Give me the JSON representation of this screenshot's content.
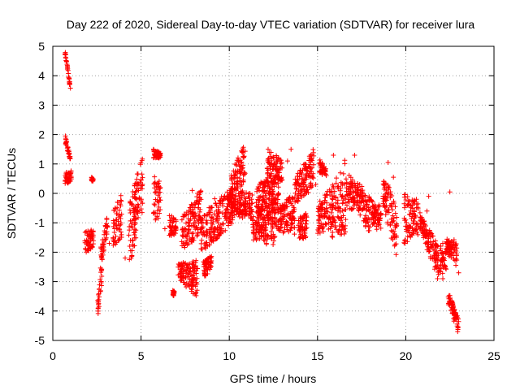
{
  "chart_data": {
    "type": "scatter",
    "title": "Day 222 of 2020, Sidereal Day-to-day VTEC variation (SDTVAR) for receiver lura",
    "xlabel": "GPS time / hours",
    "ylabel": "SDTVAR / TECUs",
    "xlim": [
      0,
      25
    ],
    "ylim": [
      -5,
      5
    ],
    "xticks": [
      0,
      5,
      10,
      15,
      20,
      25
    ],
    "yticks": [
      -5,
      -4,
      -3,
      -2,
      -1,
      0,
      1,
      2,
      3,
      4,
      5
    ],
    "grid": true,
    "marker": "+",
    "color": "#ff0000",
    "segments": [
      {
        "x": [
          0.7,
          1.0
        ],
        "y_top": [
          4.9,
          3.6
        ],
        "y_bot": [
          4.7,
          3.5
        ]
      },
      {
        "x": [
          0.7,
          1.0
        ],
        "y_top": [
          2.0,
          1.2
        ],
        "y_bot": [
          1.7,
          1.1
        ]
      },
      {
        "x": [
          0.7,
          1.05
        ],
        "y_top": [
          0.7,
          0.8
        ],
        "y_bot": [
          0.3,
          0.4
        ]
      },
      {
        "x": [
          1.8,
          2.3
        ],
        "y_top": [
          -1.3,
          -1.2
        ],
        "y_bot": [
          -2.1,
          -1.8
        ]
      },
      {
        "x": [
          2.2,
          2.3
        ],
        "y_top": [
          0.6,
          0.5
        ],
        "y_bot": [
          0.4,
          0.4
        ]
      },
      {
        "x": [
          2.55,
          2.8
        ],
        "y_top": [
          -3.6,
          -2.2
        ],
        "y_bot": [
          -4.2,
          -3.0
        ]
      },
      {
        "x": [
          2.7,
          3.1
        ],
        "y_top": [
          -1.8,
          -0.7
        ],
        "y_bot": [
          -2.6,
          -1.3
        ]
      },
      {
        "x": [
          3.4,
          3.9
        ],
        "y_top": [
          -0.6,
          0.0
        ],
        "y_bot": [
          -1.9,
          -1.5
        ]
      },
      {
        "x": [
          4.3,
          4.8
        ],
        "y_top": [
          -0.4,
          0.7
        ],
        "y_bot": [
          -2.5,
          -1.6
        ]
      },
      {
        "x": [
          4.6,
          5.1
        ],
        "y_top": [
          0.2,
          1.4
        ],
        "y_bot": [
          -1.2,
          -0.7
        ]
      },
      {
        "x": [
          5.7,
          6.1
        ],
        "y_top": [
          1.5,
          1.4
        ],
        "y_bot": [
          1.2,
          1.2
        ]
      },
      {
        "x": [
          5.7,
          6.1
        ],
        "y_top": [
          0.6,
          0.4
        ],
        "y_bot": [
          -1.0,
          -0.8
        ]
      },
      {
        "x": [
          6.6,
          7.0
        ],
        "y_top": [
          -0.6,
          -0.9
        ],
        "y_bot": [
          -1.5,
          -1.4
        ]
      },
      {
        "x": [
          6.8,
          6.9
        ],
        "y_top": [
          -3.3,
          -3.3
        ],
        "y_bot": [
          -3.5,
          -3.5
        ]
      },
      {
        "x": [
          7.3,
          8.4
        ],
        "y_top": [
          -0.8,
          0.1
        ],
        "y_bot": [
          -2.0,
          -1.4
        ]
      },
      {
        "x": [
          7.1,
          8.2
        ],
        "y_top": [
          -2.4,
          -2.2
        ],
        "y_bot": [
          -2.9,
          -3.6
        ]
      },
      {
        "x": [
          8.4,
          9.4
        ],
        "y_top": [
          -0.8,
          0.0
        ],
        "y_bot": [
          -2.0,
          -1.5
        ]
      },
      {
        "x": [
          8.5,
          9.0
        ],
        "y_top": [
          -2.3,
          -2.1
        ],
        "y_bot": [
          -2.9,
          -2.6
        ]
      },
      {
        "x": [
          9.4,
          10.2
        ],
        "y_top": [
          -0.2,
          0.3
        ],
        "y_bot": [
          -1.5,
          -1.0
        ]
      },
      {
        "x": [
          10.1,
          10.9
        ],
        "y_top": [
          0.8,
          1.7
        ],
        "y_bot": [
          -0.1,
          0.4
        ]
      },
      {
        "x": [
          10.0,
          11.3
        ],
        "y_top": [
          0.2,
          0.0
        ],
        "y_bot": [
          -0.8,
          -0.9
        ]
      },
      {
        "x": [
          11.3,
          12.6
        ],
        "y_top": [
          -0.6,
          -0.3
        ],
        "y_bot": [
          -1.6,
          -1.8
        ]
      },
      {
        "x": [
          11.5,
          12.8
        ],
        "y_top": [
          0.3,
          0.7
        ],
        "y_bot": [
          -0.8,
          -0.6
        ]
      },
      {
        "x": [
          12.1,
          13.0
        ],
        "y_top": [
          1.5,
          1.2
        ],
        "y_bot": [
          0.3,
          0.4
        ]
      },
      {
        "x": [
          12.6,
          13.7
        ],
        "y_top": [
          -0.5,
          0.0
        ],
        "y_bot": [
          -1.3,
          -1.4
        ]
      },
      {
        "x": [
          13.7,
          14.8
        ],
        "y_top": [
          0.5,
          1.6
        ],
        "y_bot": [
          -0.4,
          0.2
        ]
      },
      {
        "x": [
          13.9,
          14.4
        ],
        "y_top": [
          -0.8,
          -0.6
        ],
        "y_bot": [
          -1.6,
          -1.5
        ]
      },
      {
        "x": [
          15.0,
          15.9
        ],
        "y_top": [
          -0.3,
          0.3
        ],
        "y_bot": [
          -1.4,
          -1.2
        ]
      },
      {
        "x": [
          15.1,
          15.5
        ],
        "y_top": [
          1.2,
          0.9
        ],
        "y_bot": [
          0.7,
          0.5
        ]
      },
      {
        "x": [
          15.8,
          16.6
        ],
        "y_top": [
          0.3,
          1.2
        ],
        "y_bot": [
          -1.6,
          -1.4
        ]
      },
      {
        "x": [
          16.6,
          17.6
        ],
        "y_top": [
          0.8,
          0.2
        ],
        "y_bot": [
          -0.5,
          -0.8
        ]
      },
      {
        "x": [
          17.6,
          18.6
        ],
        "y_top": [
          0.0,
          -0.3
        ],
        "y_bot": [
          -1.3,
          -1.2
        ]
      },
      {
        "x": [
          18.7,
          19.5
        ],
        "y_top": [
          0.8,
          -0.5
        ],
        "y_bot": [
          -0.5,
          -2.2
        ]
      },
      {
        "x": [
          19.9,
          20.7
        ],
        "y_top": [
          0.0,
          -0.3
        ],
        "y_bot": [
          -1.8,
          -1.4
        ]
      },
      {
        "x": [
          20.8,
          21.6
        ],
        "y_top": [
          -0.6,
          -1.5
        ],
        "y_bot": [
          -1.2,
          -2.6
        ]
      },
      {
        "x": [
          21.6,
          22.3
        ],
        "y_top": [
          -1.5,
          -2.0
        ],
        "y_bot": [
          -2.8,
          -2.7
        ]
      },
      {
        "x": [
          22.3,
          22.9
        ],
        "y_top": [
          -1.5,
          -1.6
        ],
        "y_bot": [
          -2.0,
          -2.5
        ]
      },
      {
        "x": [
          22.4,
          23.0
        ],
        "y_top": [
          -3.3,
          -4.3
        ],
        "y_bot": [
          -3.8,
          -4.8
        ]
      }
    ],
    "scattered": [
      [
        3.2,
        -1.7
      ],
      [
        4.1,
        -2.2
      ],
      [
        6.35,
        -1.2
      ],
      [
        7.9,
        0.1
      ],
      [
        8.0,
        -1.0
      ],
      [
        9.7,
        -0.2
      ],
      [
        12.2,
        1.5
      ],
      [
        13.3,
        1.1
      ],
      [
        13.5,
        1.5
      ],
      [
        14.1,
        0.5
      ],
      [
        15.9,
        1.3
      ],
      [
        16.8,
        0.3
      ],
      [
        17.1,
        1.3
      ],
      [
        19.0,
        1.05
      ],
      [
        19.3,
        0.55
      ],
      [
        20.6,
        -0.2
      ],
      [
        21.3,
        -0.1
      ],
      [
        21.2,
        -0.6
      ],
      [
        22.1,
        -1.7
      ],
      [
        22.5,
        0.05
      ],
      [
        21.8,
        -2.9
      ],
      [
        22.1,
        -2.9
      ],
      [
        23.0,
        -2.7
      ],
      [
        11.5,
        -1.0
      ],
      [
        13.0,
        -0.4
      ],
      [
        16.0,
        -1.1
      ],
      [
        14.9,
        0.3
      ],
      [
        8.2,
        0.0
      ],
      [
        7.4,
        -1.7
      ],
      [
        9.1,
        -1.3
      ]
    ]
  }
}
